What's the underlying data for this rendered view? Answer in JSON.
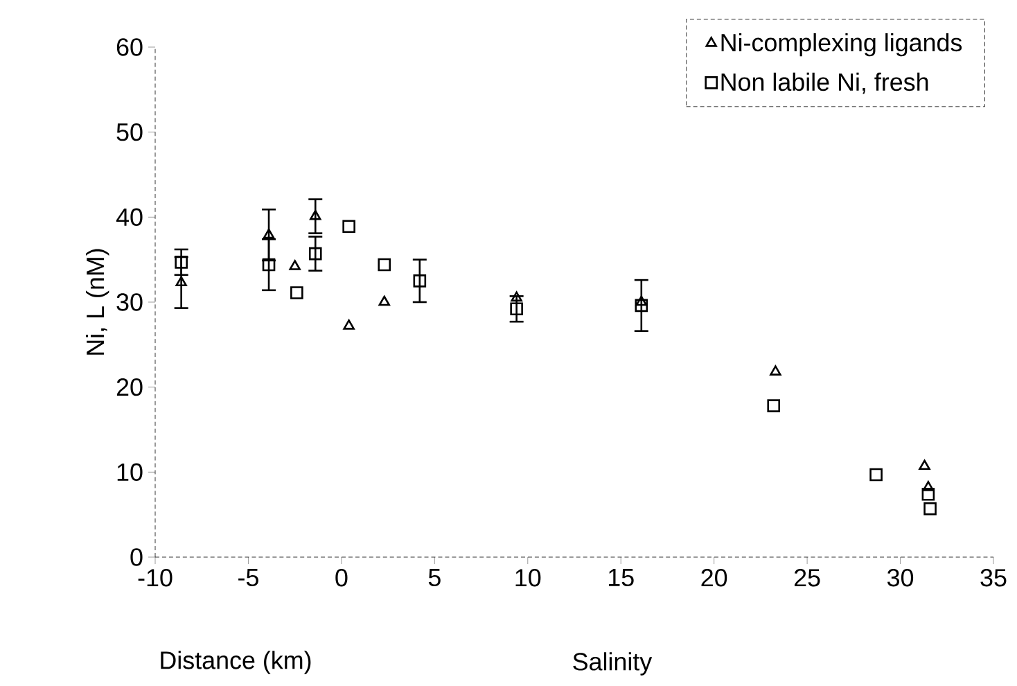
{
  "chart_data": {
    "type": "scatter",
    "xlabel": "Salinity",
    "ylabel": "Ni, L (nM)",
    "annotations": [
      "Distance (km)"
    ],
    "xlim": [
      -10,
      35
    ],
    "xticks": [
      -10,
      -5,
      0,
      5,
      10,
      15,
      20,
      25,
      30,
      35
    ],
    "ylim": [
      0,
      60
    ],
    "yticks": [
      0,
      10,
      20,
      30,
      40,
      50,
      60
    ],
    "legend": "top right",
    "grid": false,
    "series": [
      {
        "name": "Ni-complexing ligands",
        "color": "#000000",
        "marker": "triangle",
        "x": [
          -8.6,
          -3.9,
          -2.5,
          -1.4,
          0.4,
          2.3,
          9.4,
          16.1,
          23.3,
          31.3,
          31.5
        ],
        "values": [
          32.3,
          37.9,
          34.2,
          40.1,
          27.2,
          30.0,
          30.5,
          30.0,
          21.8,
          10.7,
          8.2
        ],
        "errors": [
          3,
          3,
          null,
          2,
          null,
          null,
          null,
          null,
          null,
          null,
          null
        ]
      },
      {
        "name": "Non labile Ni, fresh",
        "color": "#000000",
        "marker": "square",
        "x": [
          -8.6,
          -3.9,
          -2.4,
          -1.4,
          0.4,
          2.3,
          4.2,
          9.4,
          16.1,
          23.2,
          28.7,
          31.5,
          31.6
        ],
        "values": [
          34.7,
          34.4,
          31.1,
          35.7,
          38.9,
          34.4,
          32.5,
          29.2,
          29.6,
          17.8,
          9.7,
          7.4,
          5.7
        ],
        "errors": [
          1.5,
          3,
          null,
          2,
          null,
          null,
          2.5,
          1.5,
          3,
          null,
          null,
          null,
          null
        ]
      }
    ]
  }
}
